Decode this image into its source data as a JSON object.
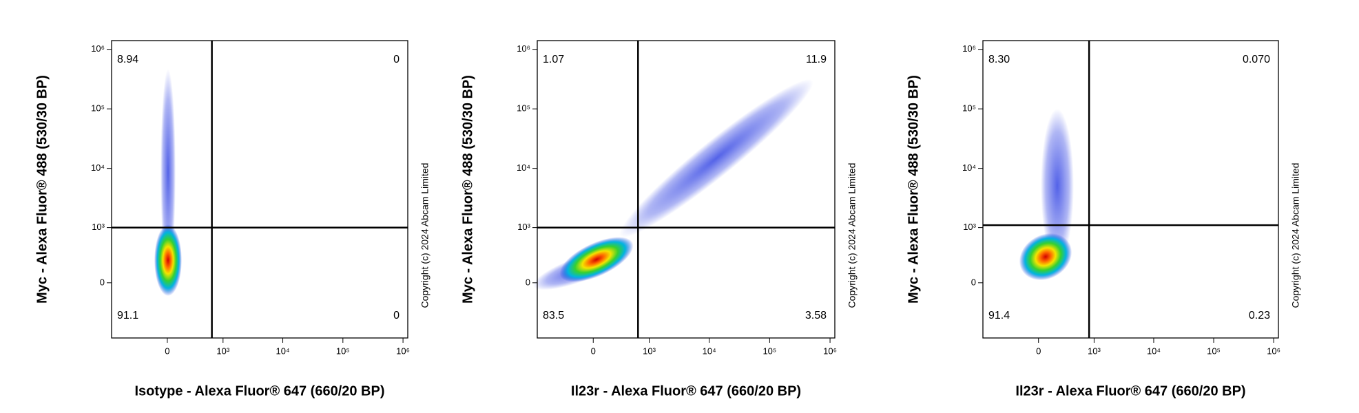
{
  "chart_data": [
    {
      "type": "scatter",
      "scale": "biexponential",
      "x_label": "Isotype - Alexa Fluor® 647 (660/20 BP)",
      "y_label": "Myc - Alexa Fluor® 488 (530/30 BP)",
      "annotation": "Copyright (c) 2024 Abcam Limited",
      "xlim": [
        -1000,
        1200000
      ],
      "ylim": [
        -1000,
        1400000
      ],
      "xticks": [
        0,
        {
          "value": 1000,
          "label": "10³"
        },
        {
          "value": 10000,
          "label": "10⁴"
        },
        {
          "value": 100000,
          "label": "10⁵"
        },
        {
          "value": 1000000,
          "label": "10⁶"
        }
      ],
      "yticks": [
        0,
        {
          "value": 1000,
          "label": "10³"
        },
        {
          "value": 10000,
          "label": "10⁴"
        },
        {
          "value": 100000,
          "label": "10⁵"
        },
        {
          "value": 1000000,
          "label": "10⁶"
        }
      ],
      "gates": {
        "x": 640,
        "y": 1000
      },
      "quadrants": {
        "values": [
          8.94,
          0,
          91.1,
          0
        ]
      }
    },
    {
      "type": "scatter",
      "scale": "biexponential",
      "x_label": "Il23r - Alexa Fluor® 647 (660/20 BP)",
      "y_label": "Myc - Alexa Fluor® 488 (530/30 BP)",
      "annotation": "Copyright (c) 2024 Abcam Limited",
      "xlim": [
        -1000,
        1200000
      ],
      "ylim": [
        -1000,
        1400000
      ],
      "xticks": [
        0,
        {
          "value": 1000,
          "label": "10³"
        },
        {
          "value": 10000,
          "label": "10⁴"
        },
        {
          "value": 100000,
          "label": "10⁵"
        },
        {
          "value": 1000000,
          "label": "10⁶"
        }
      ],
      "yticks": [
        0,
        {
          "value": 1000,
          "label": "10³"
        },
        {
          "value": 10000,
          "label": "10⁴"
        },
        {
          "value": 100000,
          "label": "10⁵"
        },
        {
          "value": 1000000,
          "label": "10⁶"
        }
      ],
      "gates": {
        "x": 640,
        "y": 1000
      },
      "quadrants": {
        "values": [
          1.07,
          11.9,
          83.5,
          3.58
        ]
      }
    },
    {
      "type": "scatter",
      "scale": "biexponential",
      "x_label": "Il23r - Alexa Fluor® 647 (660/20 BP)",
      "y_label": "Myc - Alexa Fluor® 488 (530/30 BP)",
      "annotation": "Copyright (c) 2024 Abcam Limited",
      "xlim": [
        -1000,
        1200000
      ],
      "ylim": [
        -1000,
        1400000
      ],
      "xticks": [
        0,
        {
          "value": 1000,
          "label": "10³"
        },
        {
          "value": 10000,
          "label": "10⁴"
        },
        {
          "value": 100000,
          "label": "10⁵"
        },
        {
          "value": 1000000,
          "label": "10⁶"
        }
      ],
      "yticks": [
        0,
        {
          "value": 1000,
          "label": "10³"
        },
        {
          "value": 10000,
          "label": "10⁴"
        },
        {
          "value": 100000,
          "label": "10⁵"
        },
        {
          "value": 1000000,
          "label": "10⁶"
        }
      ],
      "gates": {
        "x": 820,
        "y": 1100
      },
      "quadrants": {
        "values": [
          8.3,
          0.07,
          91.4,
          0.23
        ],
        "value_labels": [
          "8.30",
          "0.070",
          "91.4",
          "0.23"
        ]
      }
    }
  ]
}
